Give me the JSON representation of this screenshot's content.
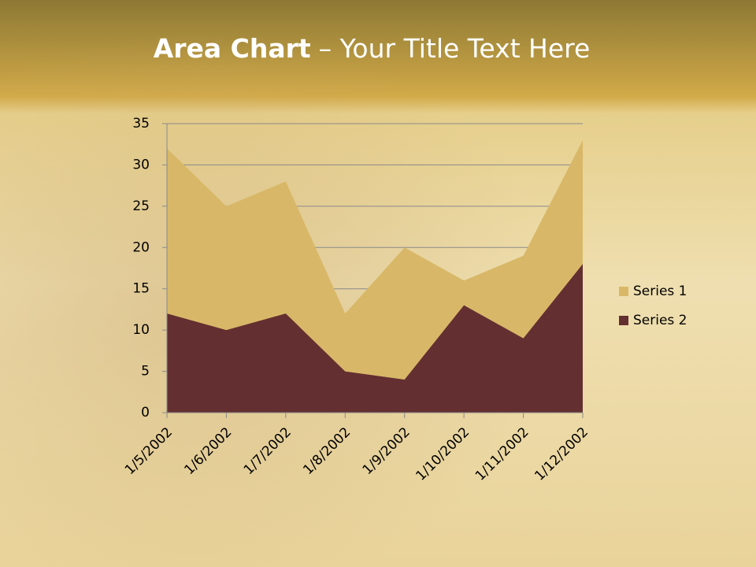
{
  "chart_data": {
    "type": "area",
    "title_emphasis": "Area Chart",
    "title": "– Your Title Text Here",
    "categories": [
      "1/5/2002",
      "1/6/2002",
      "1/7/2002",
      "1/8/2002",
      "1/9/2002",
      "1/10/2002",
      "1/11/2002",
      "1/12/2002"
    ],
    "series": [
      {
        "name": "Series 1",
        "color": "#d8b868",
        "values": [
          32,
          25,
          28,
          12,
          20,
          16,
          19,
          33
        ]
      },
      {
        "name": "Series 2",
        "color": "#642f31",
        "values": [
          12,
          10,
          12,
          5,
          4,
          13,
          9,
          18
        ]
      }
    ],
    "ylim": [
      0,
      35
    ],
    "yticks": [
      0,
      5,
      10,
      15,
      20,
      25,
      30,
      35
    ],
    "grid": true,
    "legend": "right"
  }
}
